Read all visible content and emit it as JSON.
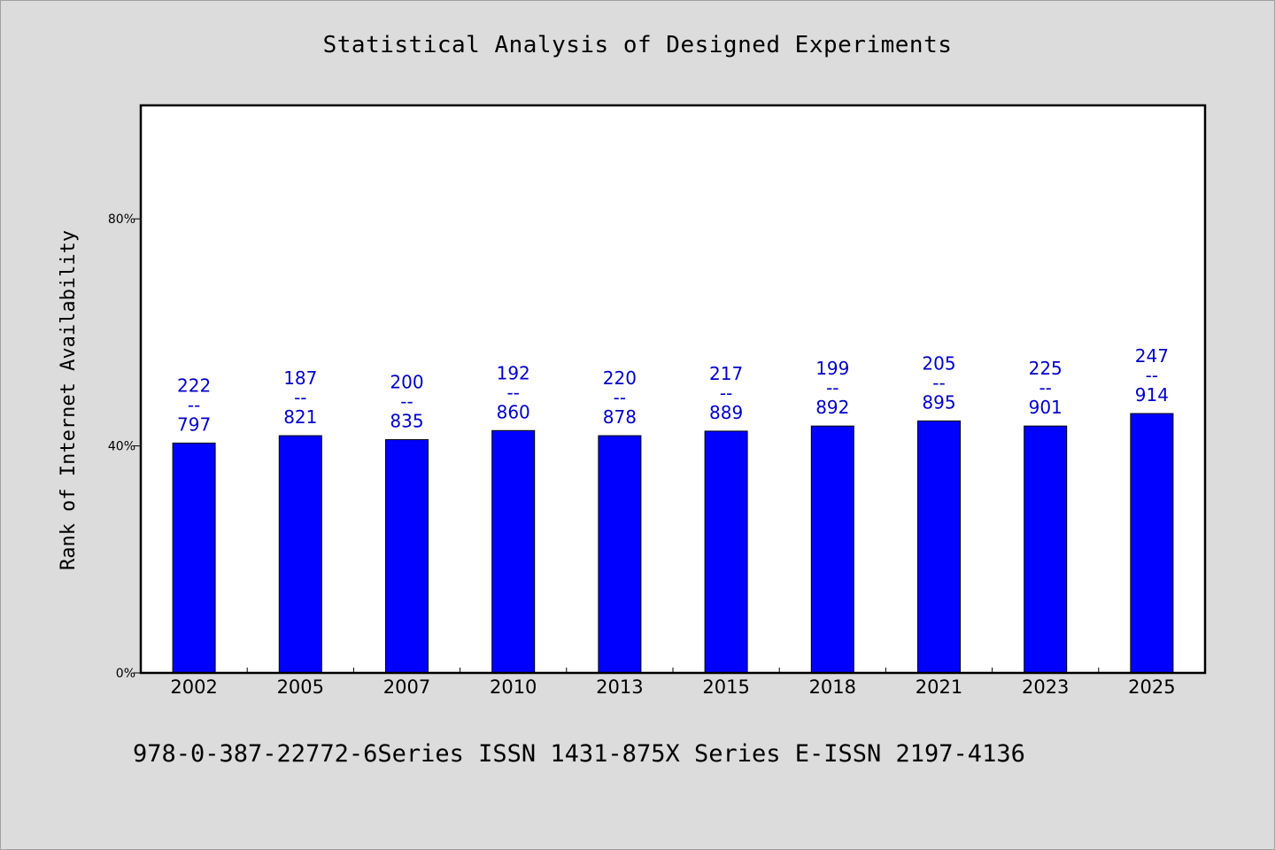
{
  "chart_data": {
    "type": "bar",
    "title": "Statistical Analysis of Designed Experiments",
    "xlabel": "",
    "ylabel": "Rank of Internet Availability",
    "categories": [
      "2002",
      "2005",
      "2007",
      "2010",
      "2013",
      "2015",
      "2018",
      "2021",
      "2023",
      "2025"
    ],
    "values": [
      0.405,
      0.418,
      0.411,
      0.427,
      0.418,
      0.426,
      0.435,
      0.444,
      0.435,
      0.457
    ],
    "bar_labels": [
      [
        "222",
        "--",
        "797"
      ],
      [
        "187",
        "--",
        "821"
      ],
      [
        "200",
        "--",
        "835"
      ],
      [
        "192",
        "--",
        "860"
      ],
      [
        "220",
        "--",
        "878"
      ],
      [
        "217",
        "--",
        "889"
      ],
      [
        "199",
        "--",
        "892"
      ],
      [
        "205",
        "--",
        "895"
      ],
      [
        "225",
        "--",
        "901"
      ],
      [
        "247",
        "--",
        "914"
      ]
    ],
    "yticks": [
      0,
      0.4,
      0.8
    ],
    "ytick_labels": [
      "0%",
      "40%",
      "80%"
    ],
    "ylim": [
      0,
      1.0
    ],
    "grid": false,
    "legend": "none",
    "colors": {
      "bar": "#0000ff",
      "bar_edge": "#000000",
      "label": "#0000cc",
      "plot_bg": "#ffffff",
      "page_bg": "#dcdcdc"
    }
  },
  "footer": {
    "text": "978-0-387-22772-6Series ISSN 1431-875X Series E-ISSN 2197-4136"
  }
}
